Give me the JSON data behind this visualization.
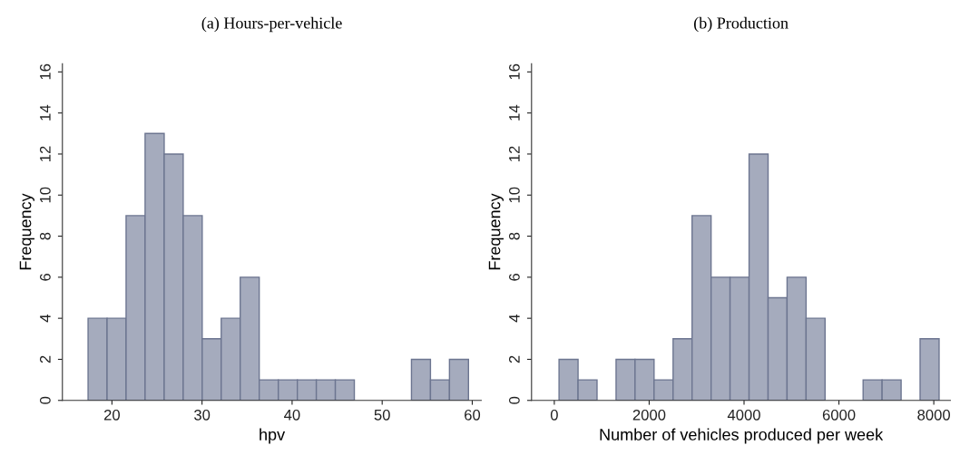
{
  "chart_data": [
    {
      "type": "histogram",
      "title": "(a) Hours-per-vehicle",
      "xlabel": "hpv",
      "ylabel": "Frequency",
      "color": "#a5abbd",
      "bins": [
        17.35,
        19.46,
        21.57,
        23.68,
        25.8,
        27.91,
        30.02,
        32.13,
        34.24,
        36.35,
        38.47,
        40.58,
        42.69,
        44.8,
        46.91,
        49.02,
        51.14,
        53.25,
        55.36,
        57.47,
        59.58
      ],
      "values": [
        4,
        4,
        9,
        13,
        12,
        9,
        3,
        4,
        6,
        1,
        1,
        1,
        1,
        1,
        0,
        0,
        0,
        2,
        1,
        2
      ],
      "xlim": [
        14.5,
        61
      ],
      "xticks": [
        20,
        30,
        40,
        50,
        60
      ],
      "ylim": [
        0,
        16.4
      ],
      "yticks": [
        0,
        2,
        4,
        6,
        8,
        10,
        12,
        14,
        16
      ],
      "grid": false
    },
    {
      "type": "histogram",
      "title": "(b) Production",
      "xlabel": "Number of vehicles produced per week",
      "ylabel": "Frequency",
      "color": "#a5abbd",
      "bins": [
        100,
        501,
        901,
        1302,
        1702,
        2103,
        2504,
        2904,
        3305,
        3705,
        4106,
        4507,
        4907,
        5308,
        5708,
        6109,
        6510,
        6910,
        7311,
        7711,
        8112
      ],
      "values": [
        2,
        1,
        0,
        2,
        2,
        1,
        3,
        9,
        6,
        6,
        12,
        5,
        6,
        4,
        0,
        0,
        1,
        1,
        0,
        3
      ],
      "xlim": [
        -480,
        8350
      ],
      "xticks": [
        0,
        2000,
        4000,
        6000,
        8000
      ],
      "ylim": [
        0,
        16.4
      ],
      "yticks": [
        0,
        2,
        4,
        6,
        8,
        10,
        12,
        14,
        16
      ],
      "grid": false
    }
  ]
}
